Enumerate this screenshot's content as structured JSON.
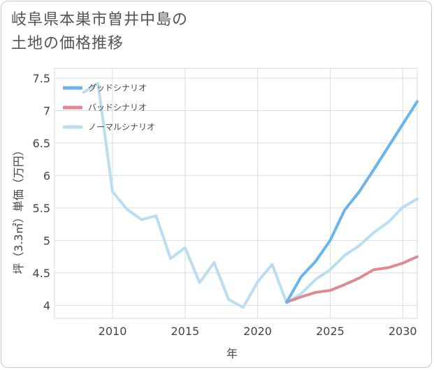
{
  "title_line1": "岐阜県本巣市曽井中島の",
  "title_line2": "土地の価格推移",
  "chart_data": {
    "type": "line",
    "title": "岐阜県本巣市曽井中島の土地の価格推移",
    "xlabel": "年",
    "ylabel": "坪（3.3㎡）単価（万円）",
    "xlim": [
      2006,
      2031
    ],
    "ylim": [
      3.8,
      7.65
    ],
    "xticks": [
      2010,
      2015,
      2020,
      2025,
      2030
    ],
    "yticks": [
      4,
      4.5,
      5,
      5.5,
      6,
      6.5,
      7,
      7.5
    ],
    "ytick_labels": [
      "4",
      "4.5",
      "5",
      "5.5",
      "6",
      "6.5",
      "7",
      "7.5"
    ],
    "legend_position": "top-left",
    "series": [
      {
        "name": "グッドシナリオ",
        "color": "#6ab4ec",
        "x": [
          2022,
          2023,
          2024,
          2025,
          2026,
          2027,
          2028,
          2029,
          2030,
          2031
        ],
        "values": [
          4.05,
          4.44,
          4.68,
          5.0,
          5.47,
          5.75,
          6.09,
          6.44,
          6.79,
          7.14
        ]
      },
      {
        "name": "バッドシナリオ",
        "color": "#dd8b91",
        "x": [
          2022,
          2023,
          2024,
          2025,
          2026,
          2027,
          2028,
          2029,
          2030,
          2031
        ],
        "values": [
          4.05,
          4.13,
          4.2,
          4.23,
          4.32,
          4.42,
          4.55,
          4.58,
          4.65,
          4.75
        ]
      },
      {
        "name": "ノーマルシナリオ",
        "color": "#bcddf0",
        "x": [
          2008,
          2009,
          2010,
          2011,
          2012,
          2013,
          2014,
          2015,
          2016,
          2017,
          2018,
          2019,
          2020,
          2021,
          2022,
          2023,
          2024,
          2025,
          2026,
          2027,
          2028,
          2029,
          2030,
          2031
        ],
        "values": [
          7.28,
          7.42,
          5.75,
          5.48,
          5.32,
          5.38,
          4.72,
          4.89,
          4.35,
          4.66,
          4.09,
          3.97,
          4.36,
          4.63,
          4.04,
          4.18,
          4.4,
          4.55,
          4.77,
          4.92,
          5.12,
          5.28,
          5.51,
          5.64
        ]
      }
    ]
  }
}
